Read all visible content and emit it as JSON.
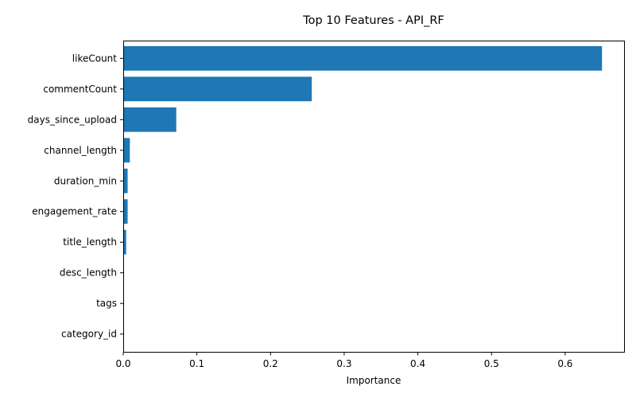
{
  "chart_data": {
    "type": "bar",
    "orientation": "horizontal",
    "title": "Top 10 Features - API_RF",
    "xlabel": "Importance",
    "ylabel": "",
    "xlim": [
      0,
      0.68
    ],
    "xticks": [
      0.0,
      0.1,
      0.2,
      0.3,
      0.4,
      0.5,
      0.6
    ],
    "xtick_labels": [
      "0.0",
      "0.1",
      "0.2",
      "0.3",
      "0.4",
      "0.5",
      "0.6"
    ],
    "grid": false,
    "bar_color": "#1f77b4",
    "categories": [
      "likeCount",
      "commentCount",
      "days_since_upload",
      "channel_length",
      "duration_min",
      "engagement_rate",
      "title_length",
      "desc_length",
      "tags",
      "category_id"
    ],
    "values": [
      0.65,
      0.256,
      0.072,
      0.009,
      0.006,
      0.006,
      0.004,
      0.0,
      0.0,
      0.0
    ]
  }
}
